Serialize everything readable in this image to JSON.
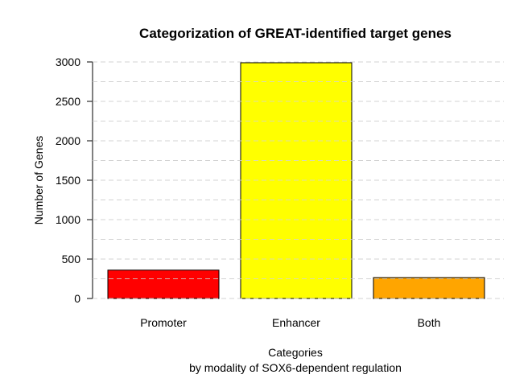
{
  "chart_data": {
    "type": "bar",
    "title": "Categorization of GREAT-identified target genes",
    "xlabel": "Categories",
    "xlabel_line2": "by modality of SOX6-dependent regulation",
    "ylabel": "Number of Genes",
    "categories": [
      "Promoter",
      "Enhancer",
      "Both"
    ],
    "values": [
      360,
      2990,
      265
    ],
    "colors": [
      "#ff0000",
      "#ffff00",
      "#ffa500"
    ],
    "ylim": [
      0,
      3000
    ],
    "yticks": [
      0,
      500,
      1000,
      1500,
      2000,
      2500,
      3000
    ],
    "grid": true,
    "grid_color": "#d3d3d3",
    "grid_style": "dashed",
    "legend": false
  }
}
